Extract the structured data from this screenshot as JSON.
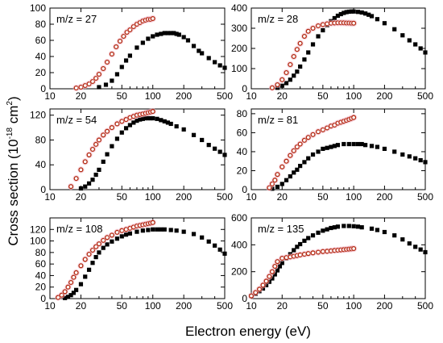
{
  "figure": {
    "ylabel_main": "Cross section (10",
    "ylabel_exp": "-18",
    "ylabel_mid": " cm",
    "ylabel_exp2": "2",
    "ylabel_close": ")",
    "xlabel": "Electron energy (eV)"
  },
  "colors": {
    "measured": "#000000",
    "computed_stroke": "#b22a10",
    "computed_halo": "#f3b8c8"
  },
  "chart_data": [
    {
      "type": "scatter",
      "label": "m/z = 27",
      "xscale": "log",
      "xlim": [
        10,
        500
      ],
      "ylim": [
        0,
        100
      ],
      "xticks": [
        "10",
        "20",
        "50",
        "100",
        "200",
        "500"
      ],
      "yticks": [
        "0",
        "20",
        "40",
        "60",
        "80",
        "100"
      ],
      "series": [
        {
          "marker": "filled-square",
          "x": [
            30,
            35,
            40,
            45,
            50,
            55,
            60,
            70,
            80,
            90,
            100,
            110,
            120,
            130,
            140,
            150,
            160,
            170,
            180,
            200,
            220,
            250,
            280,
            300,
            350,
            400,
            450,
            500
          ],
          "y": [
            2,
            5,
            10,
            18,
            27,
            35,
            41,
            51,
            57,
            62,
            65,
            67,
            68,
            69,
            69,
            69,
            69,
            68,
            67,
            64,
            60,
            53,
            47,
            44,
            38,
            33,
            29,
            26
          ]
        },
        {
          "marker": "open-circle",
          "x": [
            18,
            20,
            22,
            24,
            26,
            28,
            30,
            33,
            36,
            40,
            44,
            48,
            52,
            56,
            60,
            65,
            70,
            75,
            80,
            85,
            90,
            95,
            100
          ],
          "y": [
            1,
            2,
            4,
            6,
            9,
            13,
            18,
            25,
            33,
            43,
            52,
            59,
            65,
            70,
            73,
            77,
            80,
            82,
            84,
            85,
            86,
            86,
            87
          ]
        }
      ]
    },
    {
      "type": "scatter",
      "label": "m/z = 28",
      "xscale": "log",
      "xlim": [
        10,
        500
      ],
      "ylim": [
        0,
        400
      ],
      "xticks": [
        "10",
        "20",
        "50",
        "100",
        "200",
        "500"
      ],
      "yticks": [
        "0",
        "100",
        "200",
        "300",
        "400"
      ],
      "series": [
        {
          "marker": "filled-square",
          "x": [
            18,
            20,
            22,
            24,
            26,
            28,
            30,
            33,
            36,
            40,
            45,
            50,
            55,
            60,
            65,
            70,
            75,
            80,
            85,
            90,
            95,
            100,
            110,
            120,
            130,
            140,
            150,
            170,
            200,
            250,
            300,
            350,
            400,
            450,
            500
          ],
          "y": [
            5,
            15,
            28,
            45,
            65,
            85,
            110,
            145,
            180,
            220,
            260,
            290,
            315,
            335,
            350,
            362,
            370,
            376,
            380,
            382,
            383,
            383,
            381,
            378,
            373,
            367,
            360,
            345,
            325,
            295,
            265,
            240,
            220,
            200,
            180
          ]
        },
        {
          "marker": "open-circle",
          "x": [
            16,
            18,
            20,
            22,
            24,
            26,
            28,
            30,
            33,
            36,
            40,
            45,
            50,
            55,
            60,
            65,
            70,
            75,
            80,
            85,
            90,
            95,
            100
          ],
          "y": [
            5,
            20,
            45,
            80,
            120,
            160,
            195,
            225,
            260,
            285,
            300,
            312,
            318,
            322,
            325,
            326,
            327,
            327,
            327,
            326,
            326,
            325,
            325
          ]
        }
      ]
    },
    {
      "type": "scatter",
      "label": "m/z = 54",
      "xscale": "log",
      "xlim": [
        10,
        500
      ],
      "ylim": [
        0,
        130
      ],
      "xticks": [
        "10",
        "20",
        "50",
        "100",
        "200",
        "500"
      ],
      "yticks": [
        "0",
        "40",
        "80",
        "120"
      ],
      "series": [
        {
          "marker": "filled-square",
          "x": [
            20,
            22,
            24,
            26,
            28,
            30,
            33,
            36,
            40,
            45,
            50,
            55,
            60,
            65,
            70,
            75,
            80,
            85,
            90,
            95,
            100,
            110,
            120,
            130,
            140,
            150,
            170,
            200,
            250,
            300,
            350,
            400,
            450,
            500
          ],
          "y": [
            2,
            5,
            10,
            16,
            24,
            32,
            45,
            57,
            70,
            82,
            92,
            99,
            104,
            108,
            111,
            113,
            114,
            115,
            115,
            115,
            115,
            114,
            112,
            110,
            108,
            106,
            102,
            97,
            88,
            80,
            72,
            66,
            61,
            56
          ]
        },
        {
          "marker": "open-circle",
          "x": [
            16,
            18,
            20,
            22,
            24,
            26,
            28,
            30,
            33,
            36,
            40,
            45,
            50,
            55,
            60,
            65,
            70,
            75,
            80,
            85,
            90,
            95,
            100
          ],
          "y": [
            5,
            18,
            32,
            45,
            56,
            65,
            73,
            80,
            88,
            94,
            100,
            106,
            110,
            113,
            116,
            118,
            120,
            121,
            122,
            123,
            124,
            125,
            126
          ]
        }
      ]
    },
    {
      "type": "scatter",
      "label": "m/z = 81",
      "xscale": "log",
      "xlim": [
        10,
        500
      ],
      "ylim": [
        0,
        85
      ],
      "xticks": [
        "10",
        "20",
        "50",
        "100",
        "200",
        "500"
      ],
      "yticks": [
        "0",
        "20",
        "40",
        "60",
        "80"
      ],
      "series": [
        {
          "marker": "filled-square",
          "x": [
            16,
            18,
            20,
            22,
            24,
            26,
            28,
            30,
            33,
            36,
            40,
            45,
            50,
            55,
            60,
            65,
            70,
            80,
            90,
            100,
            110,
            120,
            130,
            150,
            170,
            200,
            250,
            300,
            350,
            400,
            450,
            500
          ],
          "y": [
            1,
            3,
            6,
            10,
            14,
            18,
            21,
            25,
            29,
            33,
            37,
            40,
            43,
            44,
            45,
            46,
            47,
            48,
            48,
            48,
            48,
            48,
            47,
            46,
            45,
            43,
            40,
            37,
            35,
            33,
            31,
            29
          ]
        },
        {
          "marker": "open-circle",
          "x": [
            15,
            16,
            17,
            18,
            20,
            22,
            24,
            26,
            28,
            30,
            33,
            36,
            40,
            45,
            50,
            55,
            60,
            65,
            70,
            75,
            80,
            85,
            90,
            95,
            100
          ],
          "y": [
            2,
            6,
            10,
            16,
            24,
            30,
            36,
            41,
            45,
            48,
            52,
            55,
            58,
            61,
            63,
            65,
            67,
            68,
            70,
            71,
            72,
            73,
            74,
            75,
            76
          ]
        }
      ]
    },
    {
      "type": "scatter",
      "label": "m/z = 108",
      "xscale": "log",
      "xlim": [
        10,
        500
      ],
      "ylim": [
        0,
        140
      ],
      "xticks": [
        "10",
        "20",
        "50",
        "100",
        "200",
        "500"
      ],
      "yticks": [
        "0",
        "20",
        "40",
        "60",
        "80",
        "100",
        "120"
      ],
      "series": [
        {
          "marker": "filled-square",
          "x": [
            14,
            15,
            16,
            17,
            18,
            20,
            22,
            24,
            26,
            28,
            30,
            33,
            36,
            40,
            45,
            50,
            55,
            60,
            70,
            80,
            90,
            100,
            110,
            120,
            130,
            150,
            170,
            200,
            250,
            300,
            350,
            400,
            450,
            500
          ],
          "y": [
            1,
            3,
            6,
            10,
            15,
            25,
            38,
            50,
            62,
            72,
            80,
            88,
            94,
            99,
            104,
            108,
            111,
            113,
            116,
            118,
            119,
            120,
            120,
            120,
            120,
            119,
            118,
            116,
            112,
            106,
            99,
            92,
            85,
            78
          ]
        },
        {
          "marker": "open-circle",
          "x": [
            12,
            13,
            14,
            15,
            16,
            17,
            18,
            20,
            22,
            24,
            26,
            28,
            30,
            33,
            36,
            40,
            45,
            50,
            55,
            60,
            65,
            70,
            75,
            80,
            85,
            90,
            95,
            100
          ],
          "y": [
            2,
            6,
            12,
            20,
            28,
            37,
            45,
            57,
            68,
            77,
            84,
            90,
            95,
            101,
            106,
            110,
            115,
            118,
            120,
            122,
            124,
            126,
            127,
            128,
            129,
            130,
            131,
            132
          ]
        }
      ]
    },
    {
      "type": "scatter",
      "label": "m/z = 135",
      "xscale": "log",
      "xlim": [
        10,
        500
      ],
      "ylim": [
        0,
        600
      ],
      "xticks": [
        "10",
        "20",
        "50",
        "100",
        "200",
        "500"
      ],
      "yticks": [
        "0",
        "200",
        "400",
        "600"
      ],
      "series": [
        {
          "marker": "filled-square",
          "x": [
            10,
            11,
            12,
            13,
            14,
            15,
            16,
            17,
            18,
            19,
            20,
            22,
            24,
            26,
            28,
            30,
            33,
            36,
            40,
            45,
            50,
            55,
            60,
            65,
            70,
            80,
            90,
            100,
            110,
            120,
            150,
            170,
            200,
            250,
            300,
            350,
            400,
            450,
            500
          ],
          "y": [
            20,
            35,
            55,
            75,
            100,
            125,
            150,
            180,
            210,
            240,
            265,
            300,
            330,
            360,
            385,
            405,
            430,
            450,
            470,
            490,
            505,
            515,
            525,
            530,
            535,
            540,
            540,
            538,
            535,
            530,
            520,
            510,
            495,
            470,
            440,
            410,
            385,
            365,
            345
          ]
        },
        {
          "marker": "open-circle",
          "x": [
            10,
            11,
            12,
            13,
            14,
            15,
            16,
            17,
            18,
            20,
            22,
            24,
            26,
            28,
            30,
            33,
            36,
            40,
            45,
            50,
            55,
            60,
            65,
            70,
            75,
            80,
            85,
            90,
            95,
            100
          ],
          "y": [
            20,
            45,
            70,
            100,
            130,
            165,
            200,
            240,
            275,
            300,
            305,
            310,
            315,
            320,
            325,
            330,
            335,
            340,
            345,
            350,
            352,
            355,
            358,
            360,
            362,
            364,
            366,
            368,
            370,
            372
          ]
        }
      ]
    }
  ]
}
